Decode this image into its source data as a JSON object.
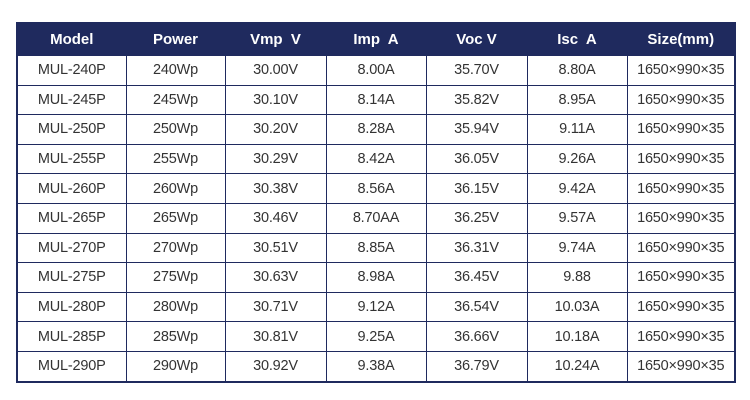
{
  "table": {
    "header": [
      "Model",
      "Power",
      "Vmp  V",
      "Imp  A",
      "Voc V",
      "Isc  A",
      "Size(mm)"
    ],
    "rows": [
      [
        "MUL-240P",
        "240Wp",
        "30.00V",
        "8.00A",
        "35.70V",
        "8.80A",
        "1650×990×35"
      ],
      [
        "MUL-245P",
        "245Wp",
        "30.10V",
        "8.14A",
        "35.82V",
        "8.95A",
        "1650×990×35"
      ],
      [
        "MUL-250P",
        "250Wp",
        "30.20V",
        "8.28A",
        "35.94V",
        "9.11A",
        "1650×990×35"
      ],
      [
        "MUL-255P",
        "255Wp",
        "30.29V",
        "8.42A",
        "36.05V",
        "9.26A",
        "1650×990×35"
      ],
      [
        "MUL-260P",
        "260Wp",
        "30.38V",
        "8.56A",
        "36.15V",
        "9.42A",
        "1650×990×35"
      ],
      [
        "MUL-265P",
        "265Wp",
        "30.46V",
        "8.70AA",
        "36.25V",
        "9.57A",
        "1650×990×35"
      ],
      [
        "MUL-270P",
        "270Wp",
        "30.51V",
        "8.85A",
        "36.31V",
        "9.74A",
        "1650×990×35"
      ],
      [
        "MUL-275P",
        "275Wp",
        "30.63V",
        "8.98A",
        "36.45V",
        "9.88",
        "1650×990×35"
      ],
      [
        "MUL-280P",
        "280Wp",
        "30.71V",
        "9.12A",
        "36.54V",
        "10.03A",
        "1650×990×35"
      ],
      [
        "MUL-285P",
        "285Wp",
        "30.81V",
        "9.25A",
        "36.66V",
        "10.18A",
        "1650×990×35"
      ],
      [
        "MUL-290P",
        "290Wp",
        "30.92V",
        "9.38A",
        "36.79V",
        "10.24A",
        "1650×990×35"
      ]
    ]
  }
}
